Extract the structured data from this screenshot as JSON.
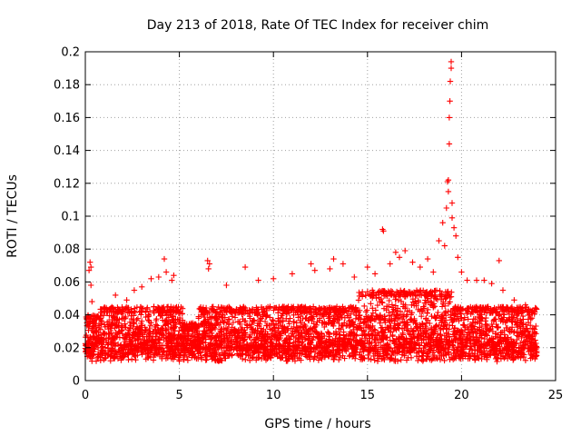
{
  "chart_data": {
    "type": "scatter",
    "title": "Day 213 of 2018, Rate Of TEC Index for receiver chim",
    "xlabel": "GPS time / hours",
    "ylabel": "ROTI / TECUs",
    "xlim": [
      0,
      25
    ],
    "ylim": [
      0,
      0.2
    ],
    "xticks": [
      0,
      5,
      10,
      15,
      20,
      25
    ],
    "xtick_labels": [
      "0",
      "5",
      "10",
      "15",
      "20",
      "25"
    ],
    "yticks": [
      0,
      0.02,
      0.04,
      0.06,
      0.08,
      0.1,
      0.12,
      0.14,
      0.16,
      0.18,
      0.2
    ],
    "ytick_labels": [
      "0",
      "0.02",
      "0.04",
      "0.06",
      "0.08",
      "0.1",
      "0.12",
      "0.14",
      "0.16",
      "0.18",
      "0.2"
    ],
    "grid": true,
    "marker": "+",
    "series": [
      {
        "name": "ROTI",
        "color": "#ff0000",
        "description_note": "dense band of points 0.005-0.05 from 0 to 24 h; outliers listed",
        "band": {
          "x_start": 0,
          "x_end": 24,
          "y_min": 0.005,
          "y_typical_max": 0.045
        },
        "points": [
          [
            0.2,
            0.067
          ],
          [
            0.25,
            0.072
          ],
          [
            0.3,
            0.069
          ],
          [
            0.3,
            0.058
          ],
          [
            0.35,
            0.048
          ],
          [
            1.2,
            0.043
          ],
          [
            1.6,
            0.052
          ],
          [
            2.2,
            0.049
          ],
          [
            2.6,
            0.055
          ],
          [
            3.0,
            0.057
          ],
          [
            3.5,
            0.062
          ],
          [
            3.9,
            0.063
          ],
          [
            4.2,
            0.074
          ],
          [
            4.3,
            0.066
          ],
          [
            4.6,
            0.061
          ],
          [
            4.7,
            0.064
          ],
          [
            6.5,
            0.073
          ],
          [
            6.55,
            0.068
          ],
          [
            6.6,
            0.071
          ],
          [
            7.5,
            0.058
          ],
          [
            8.5,
            0.069
          ],
          [
            9.2,
            0.061
          ],
          [
            10.0,
            0.062
          ],
          [
            11.0,
            0.065
          ],
          [
            12.0,
            0.071
          ],
          [
            12.2,
            0.067
          ],
          [
            13.0,
            0.068
          ],
          [
            13.2,
            0.074
          ],
          [
            13.7,
            0.071
          ],
          [
            14.3,
            0.063
          ],
          [
            15.0,
            0.069
          ],
          [
            15.4,
            0.065
          ],
          [
            15.8,
            0.092
          ],
          [
            15.85,
            0.091
          ],
          [
            16.2,
            0.071
          ],
          [
            16.5,
            0.078
          ],
          [
            16.7,
            0.075
          ],
          [
            17.0,
            0.079
          ],
          [
            17.4,
            0.072
          ],
          [
            17.8,
            0.069
          ],
          [
            18.2,
            0.074
          ],
          [
            18.5,
            0.066
          ],
          [
            18.8,
            0.085
          ],
          [
            19.0,
            0.096
          ],
          [
            19.1,
            0.082
          ],
          [
            19.2,
            0.105
          ],
          [
            19.25,
            0.121
          ],
          [
            19.3,
            0.122
          ],
          [
            19.3,
            0.115
          ],
          [
            19.35,
            0.144
          ],
          [
            19.35,
            0.16
          ],
          [
            19.38,
            0.17
          ],
          [
            19.4,
            0.182
          ],
          [
            19.45,
            0.19
          ],
          [
            19.45,
            0.194
          ],
          [
            19.5,
            0.108
          ],
          [
            19.5,
            0.099
          ],
          [
            19.6,
            0.093
          ],
          [
            19.7,
            0.088
          ],
          [
            19.8,
            0.075
          ],
          [
            20.0,
            0.066
          ],
          [
            20.3,
            0.061
          ],
          [
            20.8,
            0.061
          ],
          [
            21.2,
            0.061
          ],
          [
            21.6,
            0.059
          ],
          [
            22.0,
            0.073
          ],
          [
            22.2,
            0.055
          ],
          [
            22.8,
            0.049
          ],
          [
            23.4,
            0.046
          ]
        ]
      }
    ]
  }
}
